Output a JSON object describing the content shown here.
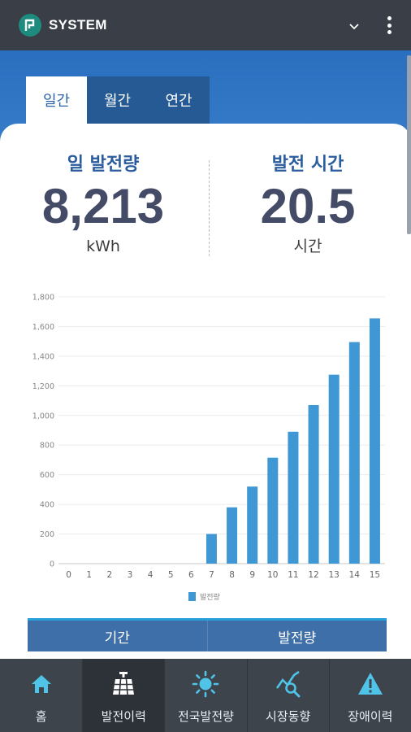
{
  "app": {
    "title": "SYSTEM"
  },
  "tabs": [
    {
      "label": "일간",
      "active": true
    },
    {
      "label": "월간",
      "active": false
    },
    {
      "label": "연간",
      "active": false
    }
  ],
  "stats": {
    "daily_generation": {
      "title": "일 발전량",
      "value": "8,213",
      "unit": "kWh"
    },
    "generation_time": {
      "title": "발전 시간",
      "value": "20.5",
      "unit": "시간"
    }
  },
  "chart_data": {
    "type": "bar",
    "categories": [
      "0",
      "1",
      "2",
      "3",
      "4",
      "5",
      "6",
      "7",
      "8",
      "9",
      "10",
      "11",
      "12",
      "13",
      "14",
      "15"
    ],
    "series": [
      {
        "name": "발전량",
        "values": [
          0,
          0,
          0,
          0,
          0,
          0,
          0,
          200,
          380,
          520,
          715,
          890,
          1070,
          1275,
          1495,
          1655
        ],
        "color": "#3f97d3"
      }
    ],
    "y_ticks": [
      "0",
      "200",
      "400",
      "600",
      "800",
      "1,000",
      "1,200",
      "1,400",
      "1,600",
      "1,800"
    ],
    "ylim": [
      0,
      1800
    ],
    "grid": true,
    "legend": "bottom"
  },
  "table": {
    "headers": [
      "기간",
      "발전량"
    ]
  },
  "bottom_nav": [
    {
      "label": "홈",
      "icon": "home-icon",
      "active": false
    },
    {
      "label": "발전이력",
      "icon": "solar-panel-icon",
      "active": true
    },
    {
      "label": "전국발전량",
      "icon": "sun-icon",
      "active": false
    },
    {
      "label": "시장동향",
      "icon": "market-trend-icon",
      "active": false
    },
    {
      "label": "장애이력",
      "icon": "warning-icon",
      "active": false
    }
  ],
  "colors": {
    "appbar": "#3a3f47",
    "accent": "#2a6fbf",
    "bar": "#3f97d3",
    "nav_icon": "#4fc3e8"
  }
}
